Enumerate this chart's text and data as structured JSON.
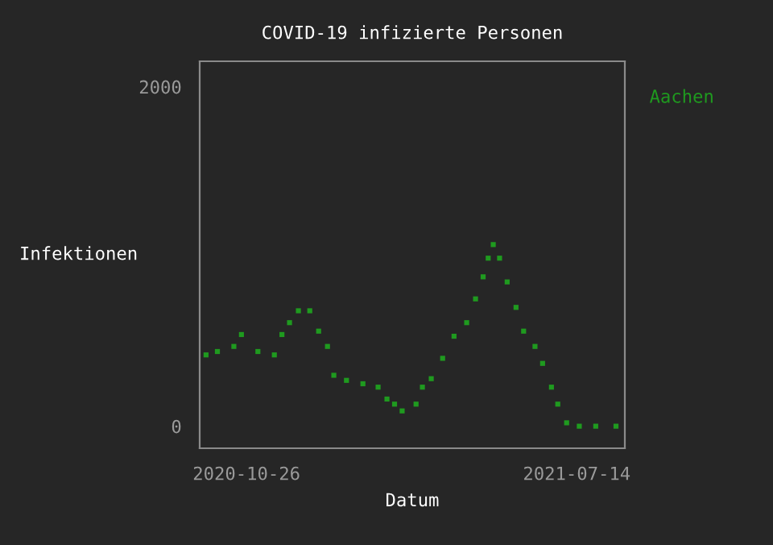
{
  "chart_data": {
    "type": "scatter",
    "title": "COVID-19 infizierte Personen",
    "xlabel": "Datum",
    "ylabel": "Infektionen",
    "x": [
      "2020-09-24",
      "2020-10-03",
      "2020-10-16",
      "2020-10-22",
      "2020-11-04",
      "2020-11-17",
      "2020-11-23",
      "2020-11-29",
      "2020-12-06",
      "2020-12-15",
      "2020-12-22",
      "2020-12-29",
      "2021-01-03",
      "2021-01-13",
      "2021-01-26",
      "2021-02-07",
      "2021-02-14",
      "2021-02-20",
      "2021-02-26",
      "2021-03-09",
      "2021-03-14",
      "2021-03-21",
      "2021-03-30",
      "2021-04-08",
      "2021-04-18",
      "2021-04-25",
      "2021-05-01",
      "2021-05-05",
      "2021-05-09",
      "2021-05-14",
      "2021-05-20",
      "2021-05-27",
      "2021-06-02",
      "2021-06-11",
      "2021-06-17",
      "2021-06-24",
      "2021-06-29",
      "2021-07-06",
      "2021-07-16",
      "2021-07-29",
      "2021-08-14"
    ],
    "series": [
      {
        "name": "Aachen",
        "color": "#1f9a1f",
        "values": [
          420,
          440,
          470,
          540,
          440,
          420,
          540,
          610,
          680,
          680,
          560,
          470,
          300,
          270,
          250,
          230,
          160,
          130,
          90,
          130,
          230,
          280,
          400,
          530,
          610,
          750,
          880,
          990,
          1070,
          990,
          850,
          700,
          560,
          470,
          370,
          230,
          130,
          20,
          0,
          0,
          0
        ]
      }
    ],
    "xlim": [
      "2020-09-19",
      "2021-08-21"
    ],
    "xticks": [
      {
        "value": "2020-10-26",
        "label": "2020-10-26"
      },
      {
        "value": "2021-07-14",
        "label": "2021-07-14"
      }
    ],
    "ylim": [
      -130,
      2150
    ],
    "yticks": [
      0,
      2000
    ],
    "grid": false,
    "legend": "right",
    "marker": "square"
  }
}
